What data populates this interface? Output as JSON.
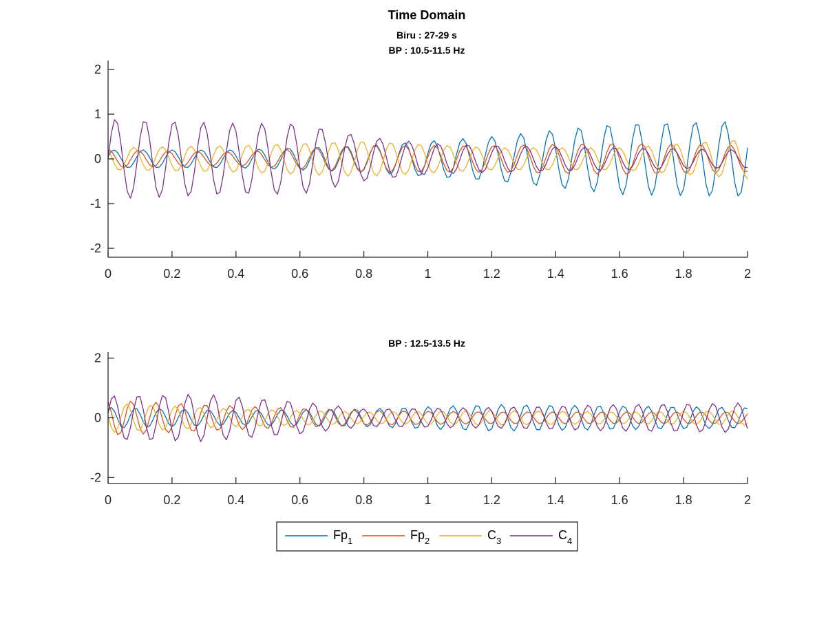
{
  "figure": {
    "main_title": "Time Domain",
    "top_subtitle_1": "Biru : 27-29 s",
    "top_subtitle_2": "BP : 10.5-11.5 Hz",
    "bottom_subtitle": "BP : 12.5-13.5 Hz"
  },
  "colors": {
    "Fp1": "#0072BD",
    "Fp2": "#D95319",
    "C3": "#EDB120",
    "C4": "#7E2F8E",
    "axis": "#262626"
  },
  "legend": {
    "placement": "bottom-center",
    "entries": [
      {
        "key": "Fp1",
        "base": "Fp",
        "sub": "1"
      },
      {
        "key": "Fp2",
        "base": "Fp",
        "sub": "2"
      },
      {
        "key": "C3",
        "base": "C",
        "sub": "3"
      },
      {
        "key": "C4",
        "base": "C",
        "sub": "4"
      }
    ]
  },
  "chart_data": [
    {
      "type": "line",
      "title": "BP : 10.5-11.5 Hz",
      "xlabel": "",
      "ylabel": "",
      "xlim": [
        0,
        2
      ],
      "ylim": [
        -2.2,
        2.2
      ],
      "xticks": [
        "0",
        "0.2",
        "0.4",
        "0.6",
        "0.8",
        "1",
        "1.2",
        "1.4",
        "1.6",
        "1.8",
        "2"
      ],
      "yticks": [
        "-2",
        "-1",
        "0",
        "1",
        "2"
      ],
      "grid": false,
      "sampling_rate_hz": 100,
      "series": [
        {
          "name": "Fp1",
          "key": "Fp1",
          "freq_hz": 11.0,
          "phase": 0.3,
          "envelope": {
            "t": [
              0,
              0.4,
              0.8,
              1.2,
              1.6,
              2.0
            ],
            "amp": [
              0.2,
              0.2,
              0.3,
              0.5,
              0.8,
              0.85
            ]
          }
        },
        {
          "name": "Fp2",
          "key": "Fp2",
          "freq_hz": 10.8,
          "phase": 1.4,
          "envelope": {
            "t": [
              0,
              0.4,
              0.8,
              1.2,
              1.6,
              2.0
            ],
            "amp": [
              0.2,
              0.15,
              0.3,
              0.3,
              0.35,
              0.3
            ]
          }
        },
        {
          "name": "C3",
          "key": "C3",
          "freq_hz": 11.2,
          "phase": 2.2,
          "envelope": {
            "t": [
              0,
              0.4,
              0.8,
              1.2,
              1.6,
              2.0
            ],
            "amp": [
              0.25,
              0.3,
              0.4,
              0.25,
              0.25,
              0.45
            ]
          }
        },
        {
          "name": "C4",
          "key": "C4",
          "freq_hz": 10.9,
          "phase": 0.0,
          "envelope": {
            "t": [
              0,
              0.4,
              0.6,
              0.8,
              1.0,
              1.2,
              1.6,
              2.0
            ],
            "amp": [
              0.9,
              0.8,
              0.8,
              0.5,
              0.35,
              0.3,
              0.25,
              0.2
            ]
          }
        }
      ]
    },
    {
      "type": "line",
      "title": "BP : 12.5-13.5 Hz",
      "xlabel": "",
      "ylabel": "",
      "xlim": [
        0,
        2
      ],
      "ylim": [
        -2.2,
        2.2
      ],
      "xticks": [
        "0",
        "0.2",
        "0.4",
        "0.6",
        "0.8",
        "1",
        "1.2",
        "1.4",
        "1.6",
        "1.8",
        "2"
      ],
      "yticks": [
        "-2",
        "0",
        "2"
      ],
      "grid": false,
      "sampling_rate_hz": 100,
      "series": [
        {
          "name": "Fp1",
          "key": "Fp1",
          "freq_hz": 13.1,
          "phase": 0.8,
          "envelope": {
            "t": [
              0,
              0.4,
              0.8,
              1.2,
              1.6,
              2.0
            ],
            "amp": [
              0.35,
              0.25,
              0.3,
              0.45,
              0.4,
              0.35
            ]
          }
        },
        {
          "name": "Fp2",
          "key": "Fp2",
          "freq_hz": 12.9,
          "phase": 2.0,
          "envelope": {
            "t": [
              0,
              0.4,
              0.8,
              1.2,
              1.6,
              2.0
            ],
            "amp": [
              0.6,
              0.4,
              0.25,
              0.2,
              0.2,
              0.2
            ]
          }
        },
        {
          "name": "C3",
          "key": "C3",
          "freq_hz": 13.2,
          "phase": 3.0,
          "envelope": {
            "t": [
              0,
              0.4,
              0.8,
              1.2,
              1.6,
              2.0
            ],
            "amp": [
              0.5,
              0.3,
              0.2,
              0.25,
              0.2,
              0.25
            ]
          }
        },
        {
          "name": "C4",
          "key": "C4",
          "freq_hz": 12.8,
          "phase": 0.2,
          "envelope": {
            "t": [
              0,
              0.3,
              0.6,
              0.8,
              1.2,
              1.6,
              2.0
            ],
            "amp": [
              0.75,
              0.8,
              0.55,
              0.3,
              0.35,
              0.45,
              0.5
            ]
          }
        }
      ]
    }
  ]
}
